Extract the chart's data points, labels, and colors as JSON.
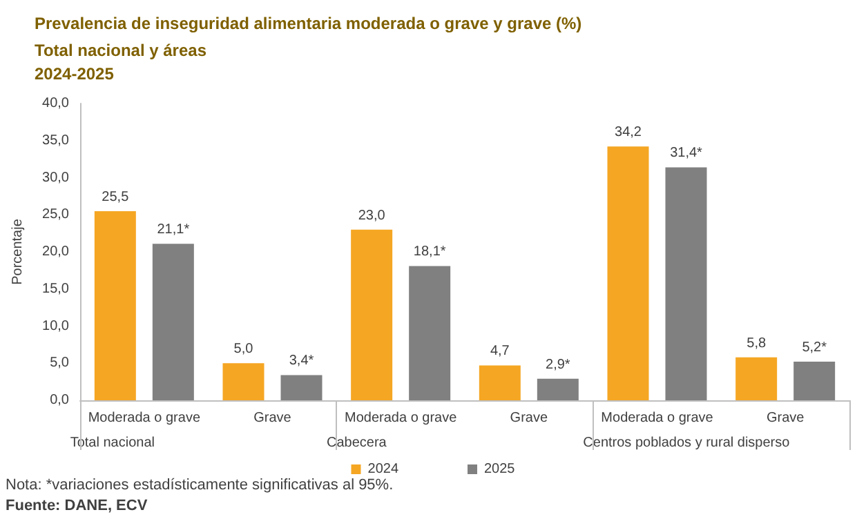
{
  "chart_data": {
    "type": "bar",
    "title": "Prevalencia de inseguridad alimentaria moderada o grave y grave (%)",
    "subtitle": "Total nacional y áreas\n2024-2025",
    "ylabel": "Porcentaje",
    "categories": [
      "Moderada o grave",
      "Grave",
      "Moderada o grave",
      "Grave",
      "Moderada o grave",
      "Grave"
    ],
    "series": [
      {
        "name": "2024",
        "color": "#f5a623",
        "values": [
          25.5,
          5.0,
          23.0,
          4.7,
          34.2,
          5.8
        ],
        "value_labels": [
          "25,5",
          "5,0",
          "23,0",
          "4,7",
          "34,2",
          "5,8"
        ]
      },
      {
        "name": "2025",
        "color": "#808080",
        "values": [
          21.1,
          3.4,
          18.1,
          2.9,
          31.4,
          5.2
        ],
        "value_labels": [
          "21,1*",
          "3,4*",
          "18,1*",
          "2,9*",
          "31,4*",
          "5,2*"
        ]
      }
    ],
    "ylim": [
      0,
      40
    ],
    "yticks": [
      {
        "value": 0,
        "label": "0,0"
      },
      {
        "value": 5,
        "label": "5,0"
      },
      {
        "value": 10,
        "label": "10,0"
      },
      {
        "value": 15,
        "label": "15,0"
      },
      {
        "value": 20,
        "label": "20,0"
      },
      {
        "value": 25,
        "label": "25,0"
      },
      {
        "value": 30,
        "label": "30,0"
      },
      {
        "value": 35,
        "label": "35,0"
      },
      {
        "value": 40,
        "label": "40,0"
      }
    ],
    "grid": false,
    "legend": "bottom",
    "annotations": [
      "Total nacional",
      "Cabecera",
      "Centros poblados y rural disperso",
      "Nota: *variaciones estadísticamente significativas al 95%.",
      "Fuente: DANE, ECV"
    ]
  }
}
